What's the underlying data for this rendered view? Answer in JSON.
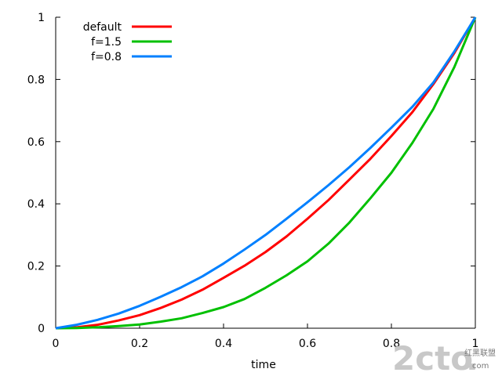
{
  "chart_data": {
    "type": "line",
    "xlabel": "time",
    "ylabel": "",
    "xlim": [
      0,
      1
    ],
    "ylim": [
      0,
      1
    ],
    "xticks": [
      "0",
      "0.2",
      "0.4",
      "0.6",
      "0.8",
      "1"
    ],
    "yticks": [
      "0",
      "0.2",
      "0.4",
      "0.6",
      "0.8",
      "1"
    ],
    "grid": false,
    "legend_position": "top-left",
    "x": [
      0,
      0.05,
      0.1,
      0.15,
      0.2,
      0.25,
      0.3,
      0.35,
      0.4,
      0.45,
      0.5,
      0.55,
      0.6,
      0.65,
      0.7,
      0.75,
      0.8,
      0.85,
      0.9,
      0.95,
      1.0
    ],
    "series": [
      {
        "name": "default",
        "color": "#ff0000",
        "values": [
          0,
          0.003,
          0.011,
          0.025,
          0.042,
          0.065,
          0.092,
          0.124,
          0.162,
          0.201,
          0.245,
          0.295,
          0.352,
          0.412,
          0.478,
          0.545,
          0.618,
          0.695,
          0.785,
          0.885,
          1.0
        ]
      },
      {
        "name": "f=1.5",
        "color": "#00c000",
        "values": [
          0,
          0.0005,
          0.003,
          0.007,
          0.012,
          0.021,
          0.032,
          0.049,
          0.068,
          0.094,
          0.13,
          0.17,
          0.215,
          0.272,
          0.34,
          0.418,
          0.5,
          0.596,
          0.705,
          0.84,
          1.0
        ]
      },
      {
        "name": "f=0.8",
        "color": "#0080ff",
        "values": [
          0,
          0.011,
          0.027,
          0.047,
          0.072,
          0.101,
          0.132,
          0.167,
          0.208,
          0.253,
          0.3,
          0.352,
          0.405,
          0.46,
          0.518,
          0.58,
          0.645,
          0.712,
          0.79,
          0.89,
          1.0
        ]
      }
    ]
  },
  "watermark": {
    "logo_text": "2cto",
    "logo_dot": ".",
    "logo_suffix": "com",
    "caption": "红黑联盟"
  }
}
